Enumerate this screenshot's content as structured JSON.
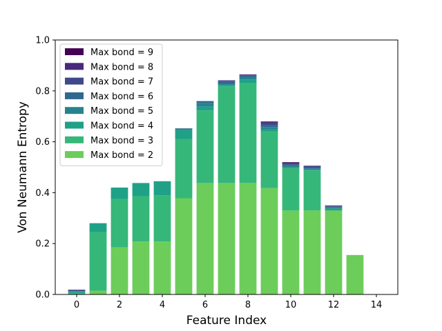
{
  "chart_data": {
    "type": "bar",
    "stacked": true,
    "xlabel": "Feature Index",
    "ylabel": "Von Neumann Entropy",
    "xlim": [
      -1.0,
      15.0
    ],
    "ylim": [
      0.0,
      1.0
    ],
    "xticks": [
      0,
      2,
      4,
      6,
      8,
      10,
      12,
      14
    ],
    "yticks": [
      0.0,
      0.2,
      0.4,
      0.6,
      0.8,
      1.0
    ],
    "x": [
      0,
      1,
      2,
      3,
      4,
      5,
      6,
      7,
      8,
      9,
      10,
      11,
      12,
      13
    ],
    "legend_position": "top-left",
    "series": [
      {
        "name": "Max bond = 2",
        "color": "#6ccd5a",
        "values": [
          0.0,
          0.015,
          0.185,
          0.208,
          0.208,
          0.378,
          0.438,
          0.438,
          0.438,
          0.418,
          0.33,
          0.33,
          0.33,
          0.155
        ]
      },
      {
        "name": "Max bond = 3",
        "color": "#35b779",
        "values": [
          0.005,
          0.23,
          0.19,
          0.178,
          0.182,
          0.233,
          0.285,
          0.38,
          0.392,
          0.222,
          0.167,
          0.157,
          0.0,
          0.0
        ]
      },
      {
        "name": "Max bond = 4",
        "color": "#1fa187",
        "values": [
          0.005,
          0.035,
          0.045,
          0.052,
          0.055,
          0.035,
          0.015,
          0.005,
          0.015,
          0.008,
          0.003,
          0.003,
          0.008,
          0.0
        ]
      },
      {
        "name": "Max bond = 5",
        "color": "#26838e",
        "values": [
          0.003,
          0.0,
          0.0,
          0.0,
          0.0,
          0.005,
          0.015,
          0.005,
          0.01,
          0.01,
          0.005,
          0.005,
          0.004,
          0.0
        ]
      },
      {
        "name": "Max bond = 6",
        "color": "#31688e",
        "values": [
          0.002,
          0.0,
          0.0,
          0.0,
          0.0,
          0.002,
          0.007,
          0.01,
          0.005,
          0.007,
          0.005,
          0.005,
          0.003,
          0.0
        ]
      },
      {
        "name": "Max bond = 7",
        "color": "#3f4889",
        "values": [
          0.002,
          0.0,
          0.0,
          0.0,
          0.0,
          0.0,
          0.0,
          0.003,
          0.002,
          0.01,
          0.005,
          0.004,
          0.003,
          0.0
        ]
      },
      {
        "name": "Max bond = 8",
        "color": "#472a7a",
        "values": [
          0.001,
          0.0,
          0.0,
          0.0,
          0.0,
          0.0,
          0.0,
          0.001,
          0.002,
          0.003,
          0.003,
          0.001,
          0.001,
          0.0
        ]
      },
      {
        "name": "Max bond = 9",
        "color": "#440154",
        "values": [
          0.001,
          0.0,
          0.0,
          0.0,
          0.0,
          0.0,
          0.0,
          0.0,
          0.001,
          0.002,
          0.002,
          0.001,
          0.001,
          0.0
        ]
      }
    ]
  }
}
